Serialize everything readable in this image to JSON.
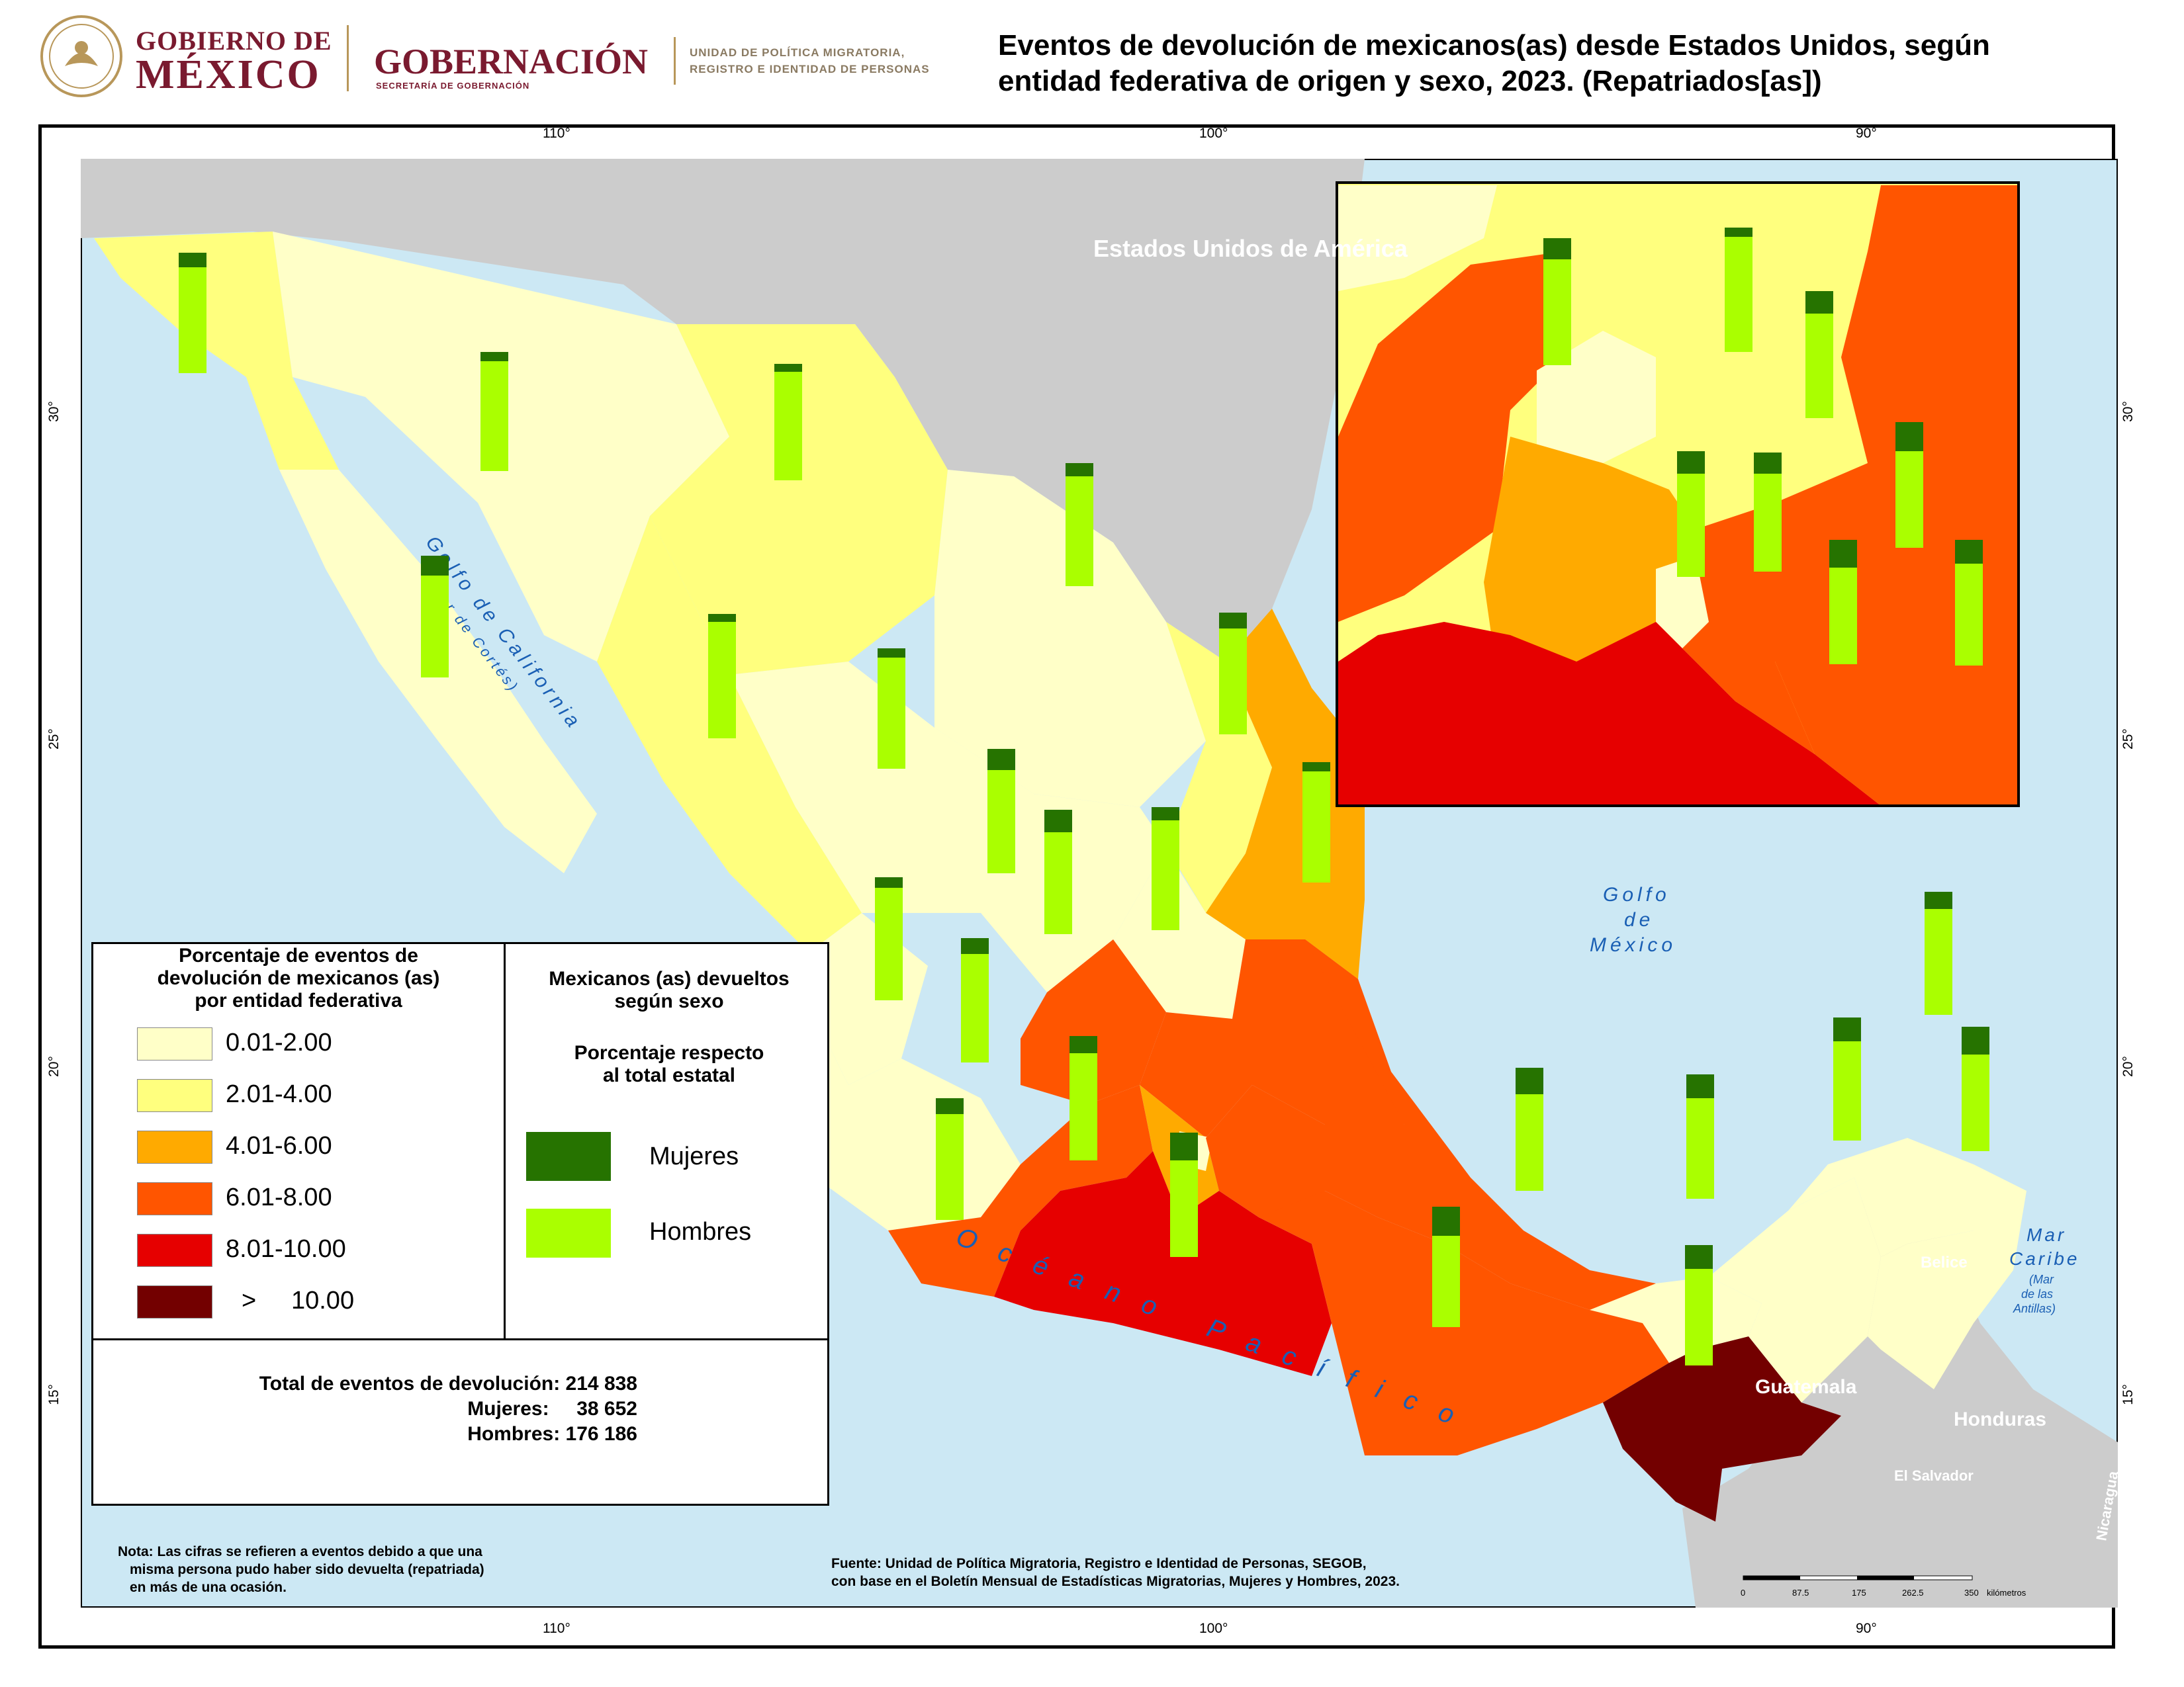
{
  "header": {
    "gov_line1": "GOBIERNO DE",
    "gov_line2": "MÉXICO",
    "ministry": "GOBERNACIÓN",
    "ministry_sub": "SECRETARÍA DE GOBERNACIÓN",
    "unit_line1": "UNIDAD DE POLÍTICA MIGRATORIA,",
    "unit_line2": "REGISTRO E IDENTIDAD DE PERSONAS",
    "title_line1": "Eventos de devolución de mexicanos(as) desde Estados Unidos, según",
    "title_line2": "entidad federativa de origen y sexo, 2023. (Repatriados[as])"
  },
  "graticule": {
    "lon_labels": [
      "110°",
      "100°",
      "90°"
    ],
    "lat_labels": [
      "30°",
      "25°",
      "20°",
      "15°"
    ]
  },
  "map_labels": {
    "usa": "Estados Unidos de América",
    "gulf_california": "Golfo de California",
    "gulf_california_alt": "(Mar de Cortés)",
    "gulf_mexico_1": "Golfo",
    "gulf_mexico_2": "de",
    "gulf_mexico_3": "México",
    "pacific": "Océano Pacífico",
    "caribbean_1": "Mar",
    "caribbean_2": "Caribe",
    "caribbean_3": "(Mar",
    "caribbean_4": "de las",
    "caribbean_5": "Antillas)",
    "belize": "Belice",
    "guatemala": "Guatemala",
    "honduras": "Honduras",
    "el_salvador": "El Salvador",
    "nicaragua": "Nicaragua"
  },
  "colors": {
    "c1": "#ffffc8",
    "c2": "#ffff7e",
    "c3": "#ffaa00",
    "c4": "#ff5500",
    "c5": "#e60000",
    "c6": "#730000",
    "women": "#267300",
    "men": "#aaff00",
    "water": "#cce8f4",
    "foreign": "#cccccc"
  },
  "legend": {
    "choropleth_title_1": "Porcentaje de eventos de",
    "choropleth_title_2": "devolución de mexicanos (as)",
    "choropleth_title_3": "por entidad federativa",
    "classes": [
      {
        "label": "0.01-2.00",
        "color": "#ffffc8"
      },
      {
        "label": "2.01-4.00",
        "color": "#ffff7e"
      },
      {
        "label": "4.01-6.00",
        "color": "#ffaa00"
      },
      {
        "label": "6.01-8.00",
        "color": "#ff5500"
      },
      {
        "label": "8.01-10.00",
        "color": "#e60000"
      },
      {
        "label": ">     10.00",
        "color": "#730000"
      }
    ],
    "sex_title_1": "Mexicanos (as) devueltos",
    "sex_title_2": "según sexo",
    "sex_sub_1": "Porcentaje respecto",
    "sex_sub_2": "al total estatal",
    "women_label": "Mujeres",
    "men_label": "Hombres",
    "total_line": "Total de eventos de devolución: 214 838",
    "women_line": "Mujeres:     38 652",
    "men_line": "Hombres: 176 186"
  },
  "note": {
    "line1": "Nota: Las cifras se refieren a eventos debido a que una",
    "line2": "misma persona pudo haber sido devuelta (repatriada)",
    "line3": "en más de una ocasión."
  },
  "source": {
    "line1": "Fuente: Unidad de Política Migratoria, Registro e Identidad de Personas, SEGOB,",
    "line2": "con base en el Boletín Mensual de Estadísticas Migratorias, Mujeres y Hombres, 2023."
  },
  "scale_bar": {
    "ticks": [
      "0",
      "87.5",
      "175",
      "262.5",
      "350"
    ],
    "unit": "kilómetros"
  }
}
